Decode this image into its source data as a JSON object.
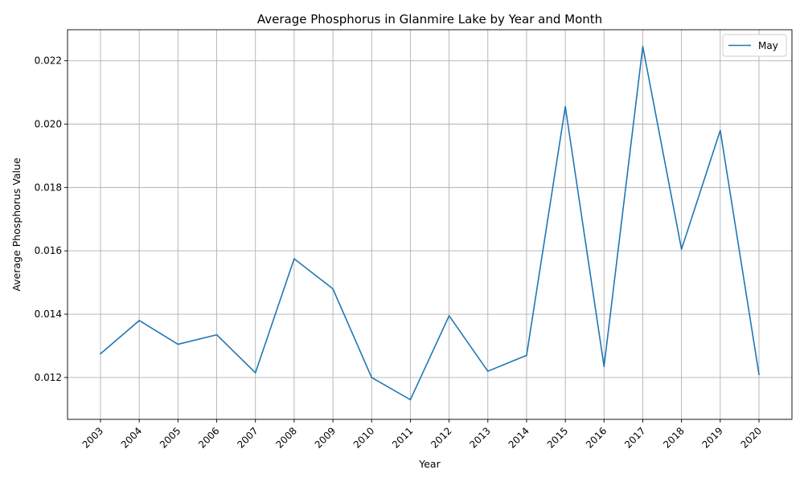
{
  "chart_data": {
    "type": "line",
    "title": "Average Phosphorus in Glanmire Lake by Year and Month",
    "xlabel": "Year",
    "ylabel": "Average Phosphorus Value",
    "x": [
      "2003",
      "2004",
      "2005",
      "2006",
      "2007",
      "2008",
      "2009",
      "2010",
      "2011",
      "2012",
      "2013",
      "2014",
      "2015",
      "2016",
      "2017",
      "2018",
      "2019",
      "2020"
    ],
    "series": [
      {
        "name": "May",
        "color": "#1f77b4",
        "values": [
          0.01275,
          0.0138,
          0.01305,
          0.01335,
          0.01215,
          0.01575,
          0.0148,
          0.012,
          0.0113,
          0.01395,
          0.0122,
          0.0127,
          0.02055,
          0.01235,
          0.02245,
          0.01605,
          0.0198,
          0.0121
        ]
      }
    ],
    "ylim": [
      0.01068,
      0.02298
    ],
    "yticks": [
      "0.012",
      "0.014",
      "0.016",
      "0.018",
      "0.020",
      "0.022"
    ],
    "grid": true,
    "legend_position": "top-right"
  }
}
